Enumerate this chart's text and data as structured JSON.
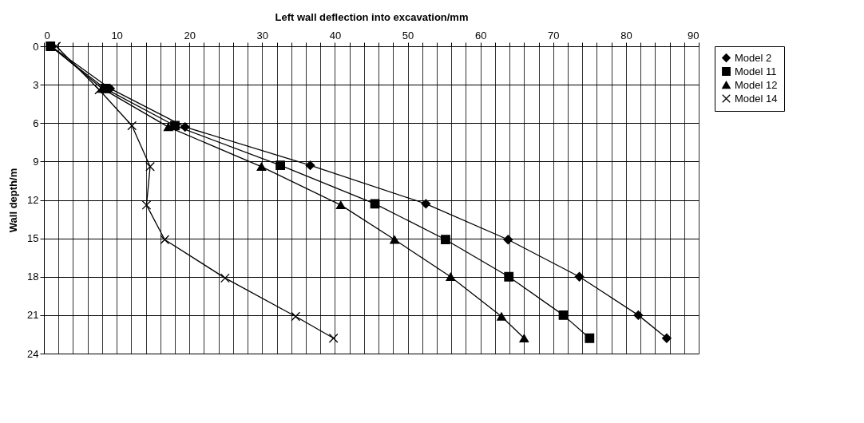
{
  "chart_data": {
    "type": "line",
    "xlabel": "Left wall deflection into excavation/mm",
    "ylabel": "Wall depth/m",
    "xlim": [
      0,
      90
    ],
    "ylim": [
      24,
      0
    ],
    "xticks": [
      0,
      {
        "value": 2,
        "label": null
      },
      {
        "value": 4,
        "label": null
      },
      {
        "value": 6,
        "label": null
      },
      {
        "value": 8,
        "label": null
      },
      10,
      {
        "value": 12,
        "label": null
      },
      {
        "value": 14,
        "label": null
      },
      {
        "value": 16,
        "label": null
      },
      {
        "value": 18,
        "label": null
      },
      20,
      {
        "value": 22,
        "label": null
      },
      {
        "value": 24,
        "label": null
      },
      {
        "value": 26,
        "label": null
      },
      {
        "value": 28,
        "label": null
      },
      30,
      {
        "value": 32,
        "label": null
      },
      {
        "value": 34,
        "label": null
      },
      {
        "value": 36,
        "label": null
      },
      {
        "value": 38,
        "label": null
      },
      40,
      {
        "value": 42,
        "label": null
      },
      {
        "value": 44,
        "label": null
      },
      {
        "value": 46,
        "label": null
      },
      {
        "value": 48,
        "label": null
      },
      50,
      {
        "value": 52,
        "label": null
      },
      {
        "value": 54,
        "label": null
      },
      {
        "value": 56,
        "label": null
      },
      {
        "value": 58,
        "label": null
      },
      60,
      {
        "value": 62,
        "label": null
      },
      {
        "value": 64,
        "label": null
      },
      {
        "value": 66,
        "label": null
      },
      {
        "value": 68,
        "label": null
      },
      70,
      {
        "value": 72,
        "label": null
      },
      {
        "value": 74,
        "label": null
      },
      {
        "value": 76,
        "label": null
      },
      {
        "value": 78,
        "label": null
      },
      80,
      {
        "value": 82,
        "label": null
      },
      {
        "value": 84,
        "label": null
      },
      {
        "value": 86,
        "label": null
      },
      {
        "value": 88,
        "label": null
      },
      90
    ],
    "yticks": [
      0,
      3,
      6,
      9,
      12,
      15,
      18,
      21,
      24
    ],
    "grid": true,
    "legend": "right",
    "line_style": "solid",
    "series": [
      {
        "name": "Model 2",
        "color": "#000000",
        "marker": "diamond",
        "x": [
          1,
          9.1,
          19.4,
          36.6,
          52.5,
          63.8,
          73.6,
          81.7,
          85.6
        ],
        "values": [
          0,
          3.3,
          6.3,
          9.3,
          12.3,
          15.1,
          18.0,
          21.0,
          22.8
        ]
      },
      {
        "name": "Model 11",
        "color": "#000000",
        "marker": "square",
        "x": [
          0.9,
          8.4,
          18.0,
          32.5,
          45.5,
          55.2,
          63.9,
          71.4,
          75.0
        ],
        "values": [
          0,
          3.3,
          6.2,
          9.3,
          12.3,
          15.1,
          18.0,
          21.0,
          22.8
        ]
      },
      {
        "name": "Model 12",
        "color": "#000000",
        "marker": "triangle",
        "x": [
          1,
          8.0,
          17.1,
          29.9,
          40.8,
          48.2,
          55.9,
          62.9,
          66.0
        ],
        "values": [
          0,
          3.3,
          6.3,
          9.4,
          12.4,
          15.1,
          18.0,
          21.1,
          22.8
        ]
      },
      {
        "name": "Model 14",
        "color": "#000000",
        "marker": "cross",
        "x": [
          1.7,
          7.6,
          12.1,
          14.6,
          14.1,
          16.6,
          24.9,
          34.6,
          39.8
        ],
        "values": [
          0,
          3.4,
          6.2,
          9.4,
          12.4,
          15.1,
          18.1,
          21.1,
          22.8
        ]
      }
    ]
  }
}
